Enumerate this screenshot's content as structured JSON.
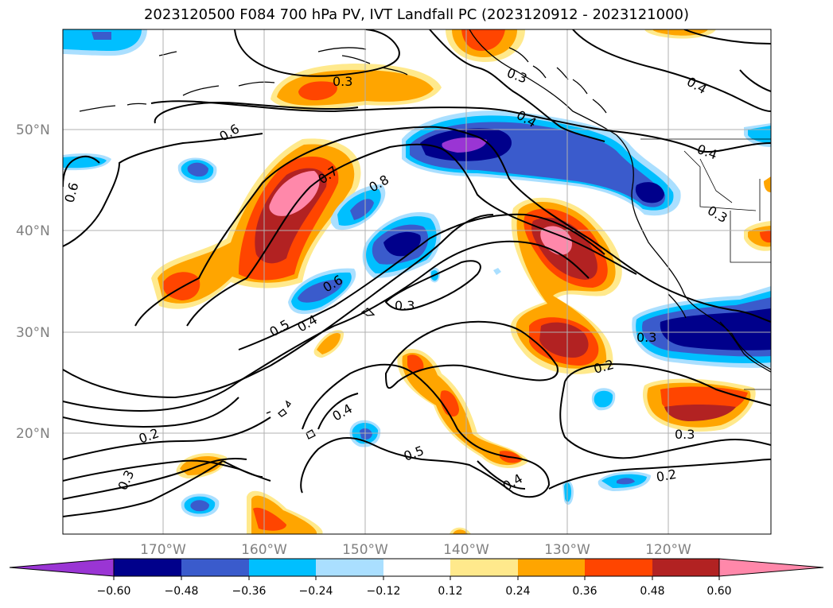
{
  "title": "2023120500 F084 700 hPa PV, IVT Landfall PC (2023120912 - 2023121000)",
  "lat_labels": [
    "50°N",
    "40°N",
    "30°N",
    "20°N"
  ],
  "lon_labels": [
    "170°W",
    "160°W",
    "150°W",
    "140°W",
    "130°W",
    "120°W"
  ],
  "colorbar": {
    "ticks": [
      "−0.60",
      "−0.48",
      "−0.36",
      "−0.24",
      "−0.12",
      "0.12",
      "0.24",
      "0.36",
      "0.48",
      "0.60"
    ],
    "colors": [
      "#9a35d4",
      "#00008b",
      "#3a5bcc",
      "#00bfff",
      "#aadfff",
      "#ffffff",
      "#ffe98c",
      "#ffa500",
      "#ff4500",
      "#b22222",
      "#ff88aa",
      "#ff88aa"
    ]
  },
  "contour_labels": [
    "0.3",
    "0.3",
    "0.4",
    "0.4",
    "0.4",
    "0.3",
    "0.6",
    "0.6",
    "0.7",
    "0.8",
    "0.6",
    "0.5",
    "0.4",
    "0.3",
    "0.3",
    "0.2",
    "0.2",
    "0.3",
    "0.4",
    "0.5",
    "0.4",
    "0.2",
    "0.3"
  ],
  "colors": {
    "fill_pink": "#ff88aa",
    "fill_darkred": "#b22222",
    "fill_orangered": "#ff4500",
    "fill_orange": "#ffa500",
    "fill_yellow": "#ffe98c",
    "fill_lightblue": "#aadfff",
    "fill_skyblue": "#00bfff",
    "fill_blue": "#3a5bcc",
    "fill_navy": "#00008b",
    "fill_purple": "#9a35d4",
    "grid": "#b0b0b0"
  }
}
